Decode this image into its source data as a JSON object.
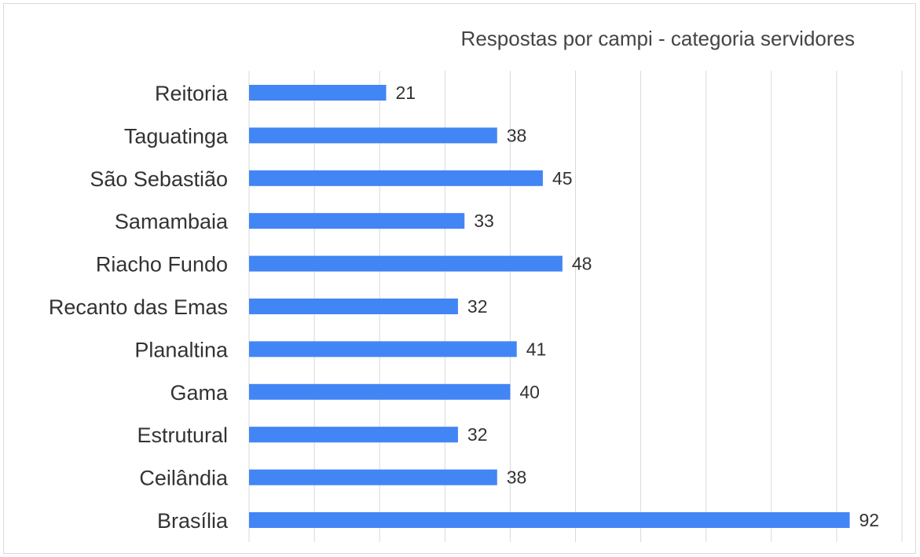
{
  "chart_data": {
    "type": "bar",
    "orientation": "horizontal",
    "title": "Respostas por campi - categoria servidores",
    "categories": [
      "Reitoria",
      "Taguatinga",
      "São Sebastião",
      "Samambaia",
      "Riacho Fundo",
      "Recanto das Emas",
      "Planaltina",
      "Gama",
      "Estrutural",
      "Ceilândia",
      "Brasília"
    ],
    "values": [
      21,
      38,
      45,
      33,
      48,
      32,
      41,
      40,
      32,
      38,
      92
    ],
    "xlim": [
      0,
      100
    ],
    "x_gridlines": true,
    "legend": "none",
    "bar_color": "#4285f4",
    "grid_color": "#d9d9d9"
  }
}
